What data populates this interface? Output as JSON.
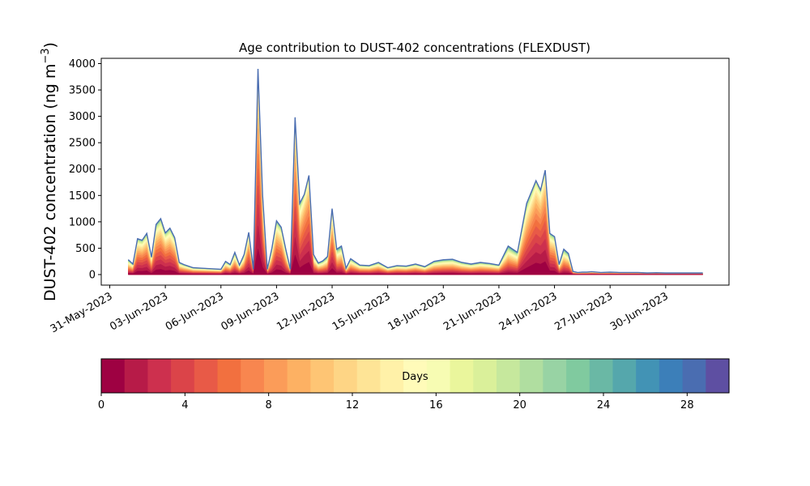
{
  "chart_data": {
    "type": "area",
    "title": "Age contribution to DUST-402 concentrations (FLEXDUST)",
    "ylabel": "DUST-402 concentration (ng m",
    "ylabel_sup": "−3",
    "ylabel_close": ")",
    "xlabel": "",
    "ylim": [
      -200,
      4100
    ],
    "yticks": [
      0,
      500,
      1000,
      1500,
      2000,
      2500,
      3000,
      3500,
      4000
    ],
    "xlim": [
      "2023-05-30T13:00",
      "2023-07-03T10:00"
    ],
    "xticks": [
      "31-May-2023",
      "03-Jun-2023",
      "06-Jun-2023",
      "09-Jun-2023",
      "12-Jun-2023",
      "15-Jun-2023",
      "18-Jun-2023",
      "21-Jun-2023",
      "24-Jun-2023",
      "27-Jun-2023",
      "30-Jun-2023"
    ],
    "grid": false,
    "stacking": "cumulative by age (days 0–30)",
    "total_concentration": {
      "x": [
        "2023-06-01T00:00",
        "2023-06-01T06:00",
        "2023-06-01T12:00",
        "2023-06-01T18:00",
        "2023-06-02T00:00",
        "2023-06-02T06:00",
        "2023-06-02T12:00",
        "2023-06-02T18:00",
        "2023-06-03T00:00",
        "2023-06-03T06:00",
        "2023-06-03T12:00",
        "2023-06-03T18:00",
        "2023-06-04T00:00",
        "2023-06-04T12:00",
        "2023-06-05T00:00",
        "2023-06-05T12:00",
        "2023-06-06T00:00",
        "2023-06-06T06:00",
        "2023-06-06T12:00",
        "2023-06-06T18:00",
        "2023-06-07T00:00",
        "2023-06-07T06:00",
        "2023-06-07T12:00",
        "2023-06-07T18:00",
        "2023-06-08T00:00",
        "2023-06-08T06:00",
        "2023-06-08T12:00",
        "2023-06-08T18:00",
        "2023-06-09T00:00",
        "2023-06-09T06:00",
        "2023-06-09T12:00",
        "2023-06-09T18:00",
        "2023-06-10T00:00",
        "2023-06-10T06:00",
        "2023-06-10T12:00",
        "2023-06-10T18:00",
        "2023-06-11T00:00",
        "2023-06-11T06:00",
        "2023-06-11T12:00",
        "2023-06-11T18:00",
        "2023-06-12T00:00",
        "2023-06-12T06:00",
        "2023-06-12T12:00",
        "2023-06-12T18:00",
        "2023-06-13T00:00",
        "2023-06-13T12:00",
        "2023-06-14T00:00",
        "2023-06-14T12:00",
        "2023-06-15T00:00",
        "2023-06-15T12:00",
        "2023-06-16T00:00",
        "2023-06-16T12:00",
        "2023-06-17T00:00",
        "2023-06-17T12:00",
        "2023-06-18T00:00",
        "2023-06-18T12:00",
        "2023-06-19T00:00",
        "2023-06-19T12:00",
        "2023-06-20T00:00",
        "2023-06-20T12:00",
        "2023-06-21T00:00",
        "2023-06-21T12:00",
        "2023-06-22T00:00",
        "2023-06-22T12:00",
        "2023-06-23T00:00",
        "2023-06-23T06:00",
        "2023-06-23T12:00",
        "2023-06-23T18:00",
        "2023-06-24T00:00",
        "2023-06-24T06:00",
        "2023-06-24T12:00",
        "2023-06-24T18:00",
        "2023-06-25T00:00",
        "2023-06-25T06:00",
        "2023-06-25T12:00",
        "2023-06-25T18:00",
        "2023-06-26T00:00",
        "2023-06-26T12:00",
        "2023-06-27T00:00",
        "2023-06-27T12:00",
        "2023-06-28T00:00",
        "2023-06-28T12:00",
        "2023-06-29T00:00",
        "2023-06-29T12:00",
        "2023-06-30T00:00",
        "2023-06-30T12:00",
        "2023-07-01T00:00",
        "2023-07-01T12:00",
        "2023-07-02T00:00"
      ],
      "values": [
        280,
        200,
        680,
        650,
        780,
        330,
        950,
        1060,
        790,
        880,
        700,
        230,
        190,
        130,
        120,
        110,
        100,
        250,
        190,
        420,
        180,
        380,
        800,
        100,
        3900,
        1500,
        100,
        500,
        1020,
        900,
        480,
        100,
        2980,
        1350,
        1520,
        1880,
        380,
        220,
        260,
        340,
        1250,
        480,
        540,
        120,
        300,
        180,
        170,
        230,
        130,
        170,
        160,
        200,
        150,
        250,
        280,
        290,
        230,
        200,
        230,
        210,
        180,
        540,
        420,
        1350,
        1780,
        1600,
        1980,
        780,
        720,
        190,
        480,
        400,
        60,
        40,
        45,
        45,
        55,
        40,
        45,
        40,
        40,
        40,
        30,
        35,
        30,
        30,
        30,
        30,
        30
      ]
    },
    "colorbar": {
      "label": "Days",
      "min": 0,
      "max": 30,
      "ticks": [
        0,
        4,
        8,
        12,
        16,
        20,
        24,
        28
      ],
      "colors": [
        "#9e0142",
        "#b71b48",
        "#cd304e",
        "#db4449",
        "#e85a47",
        "#f2703f",
        "#f8864f",
        "#fb9c59",
        "#fdb163",
        "#fec574",
        "#fed585",
        "#fee496",
        "#fff1a8",
        "#fffbb9",
        "#f7fcb3",
        "#eaf69c",
        "#daf09a",
        "#c6e89d",
        "#b0dea0",
        "#98d3a4",
        "#80ca9f",
        "#6ab8a5",
        "#55a7ac",
        "#4293b5",
        "#3c7fb9",
        "#4a6db1",
        "#5e4fa2"
      ]
    }
  }
}
